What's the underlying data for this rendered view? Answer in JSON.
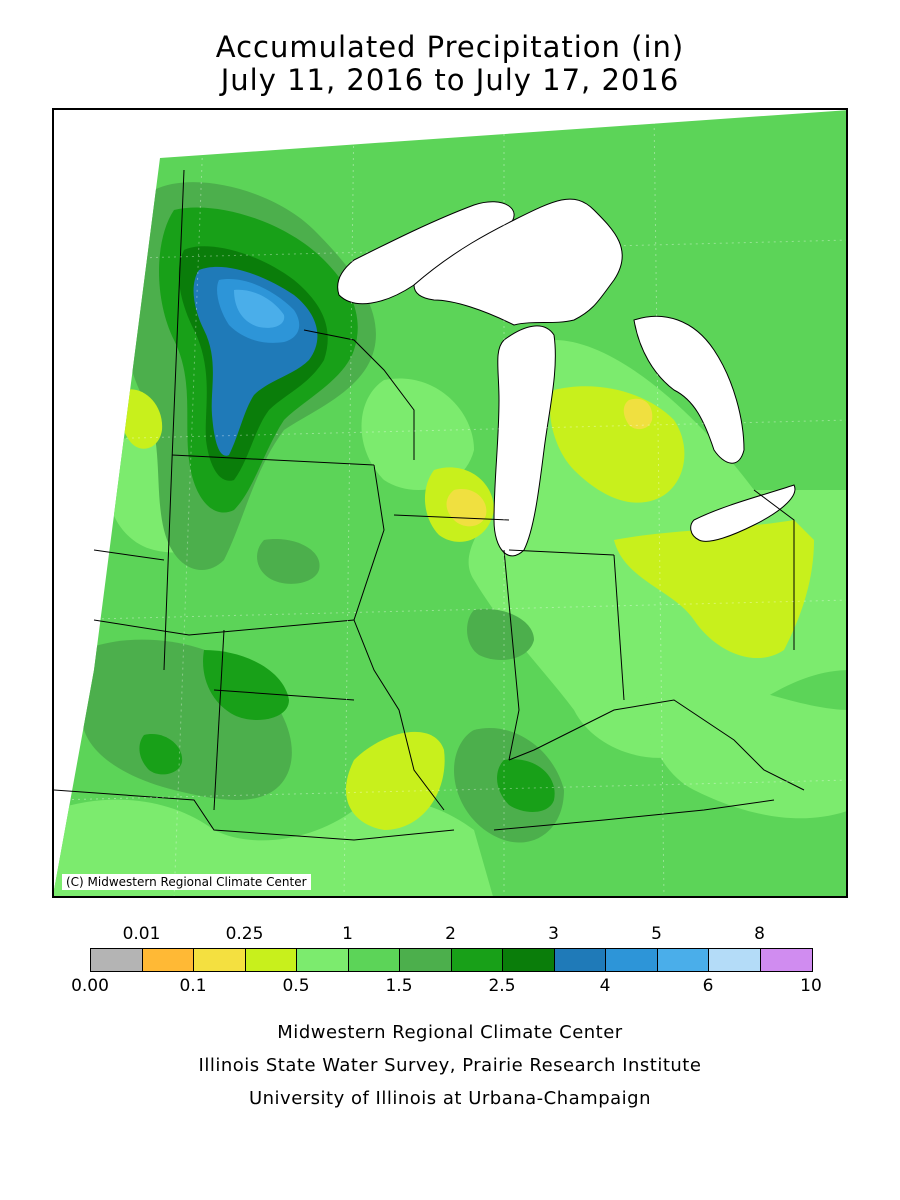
{
  "title": {
    "line1": "Accumulated Precipitation (in)",
    "line2": "July 11, 2016 to July 17, 2016"
  },
  "map": {
    "copyright": "(C) Midwestern Regional Climate Center",
    "colors": {
      "lake": "#ffffff",
      "bin_0_5_1": "#7ceb6e",
      "bin_1_1_5": "#5cd458",
      "bin_1_5_2": "#4caf4c",
      "bin_2_2_5": "#18a018",
      "bin_2_5_3": "#0a7d0a",
      "bin_3_4": "#1f7ab8",
      "bin_4_5": "#2d95d8",
      "bin_5_6": "#4aaeea",
      "bin_0_25_0_5": "#c8f01c",
      "bin_0_1_0_25": "#f0e040"
    }
  },
  "legend": {
    "top_labels": [
      "0.01",
      "0.25",
      "1",
      "2",
      "3",
      "5",
      "8"
    ],
    "bottom_labels": [
      "0.00",
      "0.1",
      "0.5",
      "1.5",
      "2.5",
      "4",
      "6",
      "10"
    ],
    "colors": [
      "#b4b4b4",
      "#ffb935",
      "#f4e040",
      "#c8f01c",
      "#7ceb6e",
      "#5cd458",
      "#4caf4c",
      "#18a018",
      "#0a7d0a",
      "#1f7ab8",
      "#2d95d8",
      "#4aaeea",
      "#b4dcf8",
      "#d08cf0"
    ]
  },
  "credits": {
    "line1": "Midwestern Regional Climate Center",
    "line2": "Illinois State Water Survey, Prairie Research Institute",
    "line3": "University of Illinois at Urbana-Champaign"
  }
}
